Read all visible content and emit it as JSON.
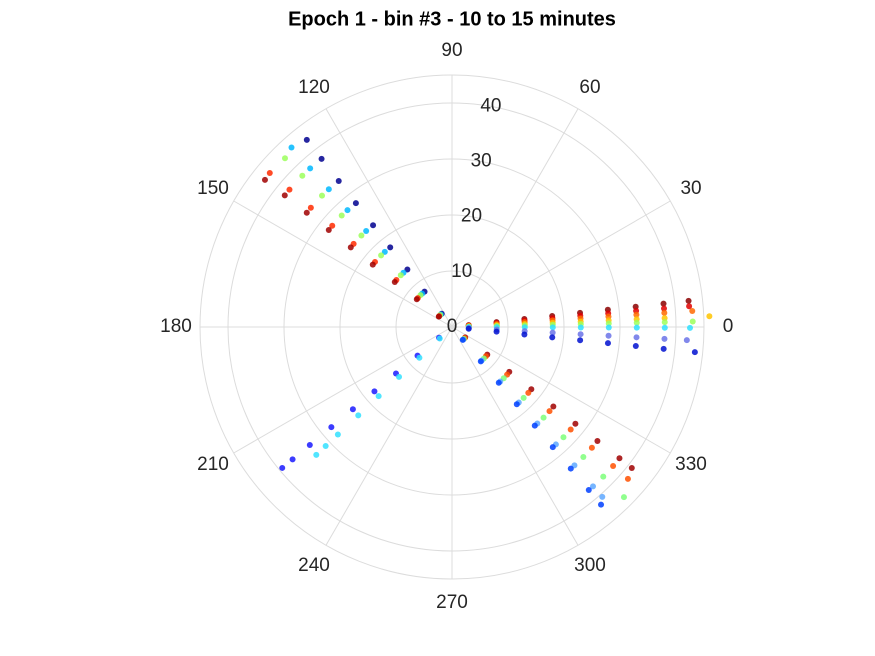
{
  "chart_data": {
    "type": "polar_scatter",
    "title": "Epoch 1 - bin #3 - 10 to 15 minutes",
    "rlim": [
      0,
      45
    ],
    "rticks": [
      0,
      10,
      20,
      30,
      40
    ],
    "thetaticks": [
      0,
      30,
      60,
      90,
      120,
      150,
      180,
      210,
      240,
      270,
      300,
      330
    ],
    "grid": true,
    "series": [
      {
        "color": "#8b0000",
        "theta": 6.3,
        "r": [
          3,
          8,
          13,
          18,
          23,
          28,
          33,
          38,
          42.5
        ]
      },
      {
        "color": "#e00000",
        "theta": 5,
        "r": [
          3,
          8,
          13,
          18,
          23,
          28,
          33,
          38,
          42.5
        ]
      },
      {
        "color": "#ff6a00",
        "theta": 3.8,
        "r": [
          3,
          8,
          13,
          18,
          23,
          28,
          33,
          38,
          43
        ]
      },
      {
        "color": "#ffc400",
        "theta": 2.4,
        "r": [
          3,
          8,
          13,
          18,
          23,
          28,
          33,
          38,
          46
        ]
      },
      {
        "color": "#9cff5c",
        "theta": 1.3,
        "r": [
          3,
          8,
          13,
          18,
          23,
          28,
          33,
          38,
          43
        ]
      },
      {
        "color": "#2ee0ff",
        "theta": -0.2,
        "r": [
          3,
          8,
          13,
          18,
          23,
          28,
          33,
          38,
          42.5
        ]
      },
      {
        "color": "#6b73e8",
        "theta": -3.2,
        "r": [
          3,
          8,
          13,
          18,
          23,
          28,
          33,
          38,
          42
        ]
      },
      {
        "color": "#0010d0",
        "theta": -5.9,
        "r": [
          3,
          8,
          13,
          18,
          23,
          28,
          33,
          38,
          43.6
        ]
      },
      {
        "color": "#00008f",
        "theta": 127.8,
        "r": [
          3,
          8,
          13,
          18,
          23,
          28,
          33,
          38,
          42.3
        ]
      },
      {
        "color": "#00b8ff",
        "theta": 131.8,
        "r": [
          3,
          8,
          13,
          18,
          23,
          28,
          33,
          38,
          43
        ]
      },
      {
        "color": "#9cff5c",
        "theta": 134.7,
        "r": [
          3,
          8,
          13,
          18,
          23,
          28,
          33,
          38,
          42.4
        ]
      },
      {
        "color": "#ff2a00",
        "theta": 139.8,
        "r": [
          3,
          8,
          13,
          18,
          23,
          28,
          33,
          38,
          42.6
        ]
      },
      {
        "color": "#a00000",
        "theta": 141.8,
        "r": [
          3,
          8,
          13,
          18,
          23,
          28,
          33,
          38,
          42.5
        ]
      },
      {
        "color": "#1a1aff",
        "theta": 219.7,
        "r": [
          3,
          8,
          13,
          18,
          23,
          28,
          33,
          37,
          39.4
        ]
      },
      {
        "color": "#33e0ff",
        "theta": 223.3,
        "r": [
          3,
          8,
          13,
          18,
          23,
          28,
          31,
          33.3
        ]
      },
      {
        "color": "#a00000",
        "theta": 321.9,
        "r": [
          3,
          8,
          13,
          18,
          23,
          28,
          33,
          38,
          40.8
        ]
      },
      {
        "color": "#ff5000",
        "theta": 319.2,
        "r": [
          3,
          8,
          13,
          18,
          23,
          28,
          33,
          38,
          41.5
        ]
      },
      {
        "color": "#7dff7a",
        "theta": 315.3,
        "r": [
          3,
          8,
          13,
          18,
          23,
          28,
          33,
          38,
          43.2
        ]
      },
      {
        "color": "#5ea8ff",
        "theta": 311.5,
        "r": [
          3,
          8,
          13,
          18,
          23,
          28,
          33,
          38,
          40.5
        ]
      },
      {
        "color": "#0040ff",
        "theta": 310,
        "r": [
          3,
          8,
          13,
          18,
          23,
          28,
          33,
          38,
          41.4
        ]
      }
    ]
  }
}
